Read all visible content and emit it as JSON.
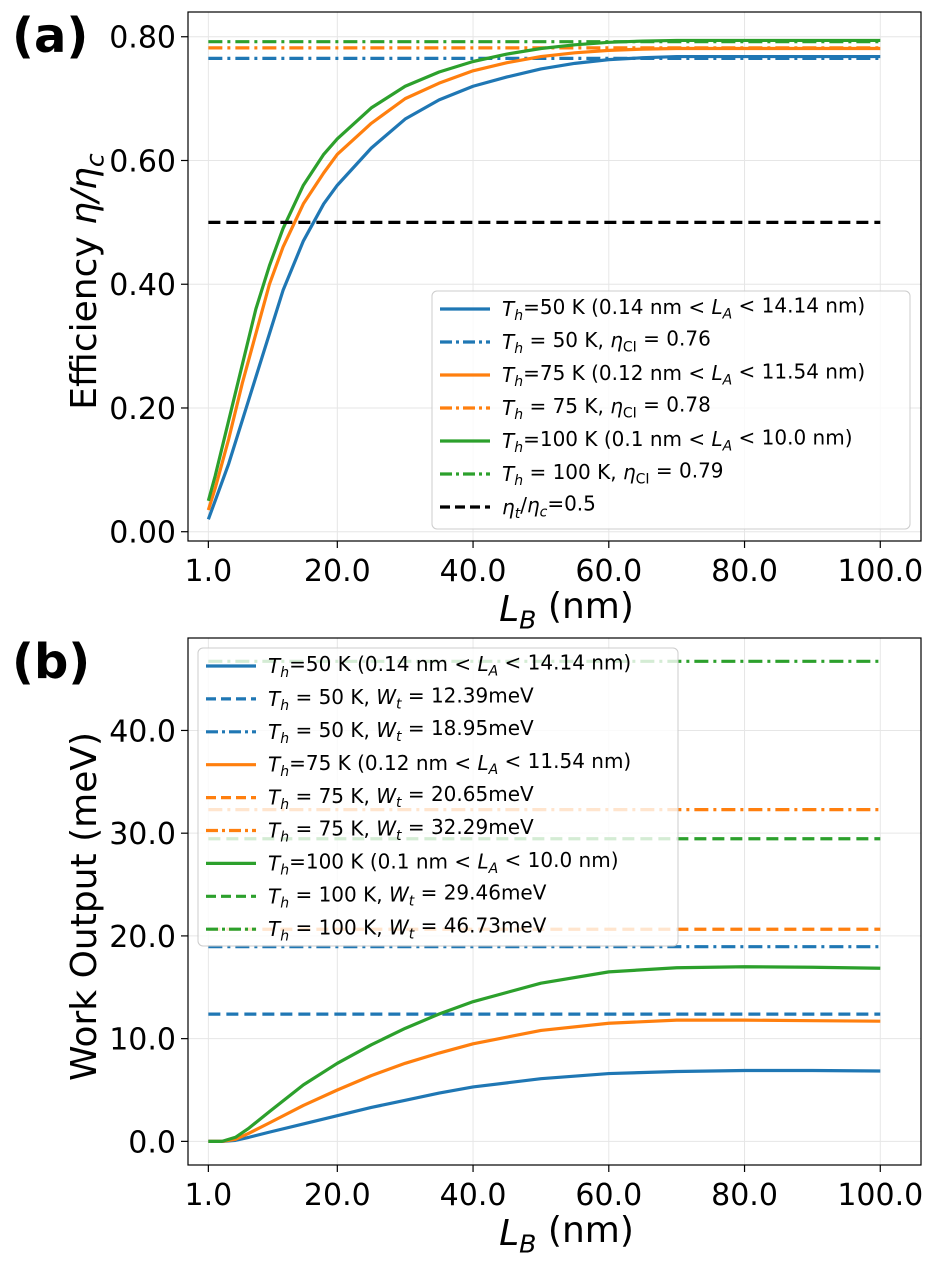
{
  "colors": {
    "blue": "#1f77b4",
    "orange": "#ff7f0e",
    "green": "#2ca02c",
    "black": "#000000",
    "grid": "#e6e6e6"
  },
  "chart_data": [
    {
      "panel_label": "(a)",
      "type": "line",
      "xlabel": "L_B (nm)",
      "ylabel": "Efficiency η/η_c",
      "xlim": [
        -2,
        106
      ],
      "ylim": [
        -0.015,
        0.84
      ],
      "xticks": [
        1,
        20,
        40,
        60,
        80,
        100
      ],
      "xtick_labels": [
        "1.0",
        "20.0",
        "40.0",
        "60.0",
        "80.0",
        "100.0"
      ],
      "yticks": [
        0.0,
        0.2,
        0.4,
        0.6,
        0.8
      ],
      "ytick_labels": [
        "0.00",
        "0.20",
        "0.40",
        "0.60",
        "0.80"
      ],
      "grid": true,
      "legend_position": "lower-right",
      "series": [
        {
          "name": "T_h=50 K (0.14 nm < L_A < 14.14 nm)",
          "color": "blue",
          "style": "solid",
          "x": [
            1,
            2,
            4,
            6,
            8,
            10,
            12,
            15,
            18,
            20,
            25,
            30,
            35,
            40,
            45,
            50,
            55,
            60,
            65,
            70,
            80,
            90,
            100
          ],
          "y": [
            0.02,
            0.05,
            0.11,
            0.18,
            0.25,
            0.32,
            0.39,
            0.47,
            0.53,
            0.56,
            0.62,
            0.667,
            0.698,
            0.72,
            0.735,
            0.748,
            0.757,
            0.763,
            0.766,
            0.768,
            0.768,
            0.768,
            0.768
          ]
        },
        {
          "name": "T_h = 50 K,  η_CI = 0.76",
          "color": "blue",
          "style": "dashdot",
          "x": [
            1,
            100
          ],
          "y": [
            0.765,
            0.765
          ]
        },
        {
          "name": "T_h=75 K (0.12 nm < L_A < 11.54 nm)",
          "color": "orange",
          "style": "solid",
          "x": [
            1,
            2,
            4,
            6,
            8,
            10,
            12,
            15,
            18,
            20,
            25,
            30,
            35,
            40,
            45,
            50,
            55,
            60,
            65,
            70,
            80,
            90,
            100
          ],
          "y": [
            0.035,
            0.07,
            0.15,
            0.24,
            0.32,
            0.4,
            0.46,
            0.53,
            0.58,
            0.61,
            0.66,
            0.7,
            0.725,
            0.745,
            0.758,
            0.768,
            0.774,
            0.778,
            0.78,
            0.781,
            0.781,
            0.781,
            0.781
          ]
        },
        {
          "name": "T_h = 75 K,  η_CI = 0.78",
          "color": "orange",
          "style": "dashdot",
          "x": [
            1,
            100
          ],
          "y": [
            0.782,
            0.782
          ]
        },
        {
          "name": "T_h=100 K (0.1 nm < L_A < 10.0 nm)",
          "color": "green",
          "style": "solid",
          "x": [
            1,
            2,
            4,
            6,
            8,
            10,
            12,
            15,
            18,
            20,
            25,
            30,
            35,
            40,
            45,
            50,
            55,
            60,
            65,
            70,
            80,
            90,
            100
          ],
          "y": [
            0.05,
            0.09,
            0.18,
            0.27,
            0.36,
            0.43,
            0.49,
            0.56,
            0.61,
            0.635,
            0.685,
            0.72,
            0.743,
            0.76,
            0.772,
            0.781,
            0.787,
            0.791,
            0.793,
            0.794,
            0.794,
            0.794,
            0.794
          ]
        },
        {
          "name": "T_h = 100 K,  η_CI = 0.79",
          "color": "green",
          "style": "dashdot",
          "x": [
            1,
            100
          ],
          "y": [
            0.792,
            0.792
          ]
        },
        {
          "name": "η_t/η_c=0.5",
          "color": "black",
          "style": "dashed",
          "x": [
            1,
            100
          ],
          "y": [
            0.5,
            0.5
          ]
        }
      ]
    },
    {
      "panel_label": "(b)",
      "type": "line",
      "xlabel": "L_B (nm)",
      "ylabel": "Work Output (meV)",
      "xlim": [
        -2,
        106
      ],
      "ylim": [
        -2.3,
        49.0
      ],
      "xticks": [
        1,
        20,
        40,
        60,
        80,
        100
      ],
      "xtick_labels": [
        "1.0",
        "20.0",
        "40.0",
        "60.0",
        "80.0",
        "100.0"
      ],
      "yticks": [
        0,
        10,
        20,
        30,
        40
      ],
      "ytick_labels": [
        "0.0",
        "10.0",
        "20.0",
        "30.0",
        "40.0"
      ],
      "grid": true,
      "legend_position": "upper-left",
      "series": [
        {
          "name": "T_h=50 K (0.14 nm < L_A < 14.14 nm)",
          "color": "blue",
          "style": "solid",
          "x": [
            1,
            3,
            5,
            7,
            10,
            15,
            20,
            25,
            30,
            35,
            40,
            50,
            60,
            70,
            80,
            90,
            100
          ],
          "y": [
            0,
            0,
            0.1,
            0.4,
            0.9,
            1.7,
            2.5,
            3.3,
            4.0,
            4.7,
            5.3,
            6.1,
            6.6,
            6.8,
            6.9,
            6.9,
            6.85
          ]
        },
        {
          "name": "T_h = 50 K,  W_t = 12.39meV",
          "color": "blue",
          "style": "dashed",
          "x": [
            1,
            100
          ],
          "y": [
            12.39,
            12.39
          ]
        },
        {
          "name": "T_h = 50 K,  W_t = 18.95meV",
          "color": "blue",
          "style": "dashdot",
          "x": [
            1,
            100
          ],
          "y": [
            18.95,
            18.95
          ]
        },
        {
          "name": "T_h=75 K (0.12 nm < L_A < 11.54 nm)",
          "color": "orange",
          "style": "solid",
          "x": [
            1,
            3,
            5,
            7,
            10,
            15,
            20,
            25,
            30,
            35,
            40,
            50,
            60,
            70,
            80,
            90,
            100
          ],
          "y": [
            0,
            0,
            0.2,
            0.8,
            1.8,
            3.5,
            5.0,
            6.4,
            7.6,
            8.6,
            9.5,
            10.8,
            11.5,
            11.8,
            11.8,
            11.75,
            11.7
          ]
        },
        {
          "name": "T_h = 75 K,  W_t = 20.65meV",
          "color": "orange",
          "style": "dashed",
          "x": [
            1,
            100
          ],
          "y": [
            20.65,
            20.65
          ]
        },
        {
          "name": "T_h = 75 K,  W_t = 32.29meV",
          "color": "orange",
          "style": "dashdot",
          "x": [
            1,
            100
          ],
          "y": [
            32.29,
            32.29
          ]
        },
        {
          "name": "T_h=100 K (0.1 nm < L_A < 10.0 nm)",
          "color": "green",
          "style": "solid",
          "x": [
            1,
            3,
            5,
            7,
            10,
            15,
            20,
            25,
            30,
            35,
            40,
            50,
            60,
            70,
            80,
            90,
            100
          ],
          "y": [
            0,
            0,
            0.4,
            1.3,
            2.9,
            5.5,
            7.6,
            9.4,
            11.0,
            12.4,
            13.6,
            15.4,
            16.5,
            16.9,
            17.0,
            16.95,
            16.85
          ]
        },
        {
          "name": "T_h = 100 K,  W_t = 29.46meV",
          "color": "green",
          "style": "dashed",
          "x": [
            1,
            100
          ],
          "y": [
            29.46,
            29.46
          ]
        },
        {
          "name": "T_h = 100 K,  W_t = 46.73meV",
          "color": "green",
          "style": "dashdot",
          "x": [
            1,
            100
          ],
          "y": [
            46.73,
            46.73
          ]
        }
      ]
    }
  ]
}
